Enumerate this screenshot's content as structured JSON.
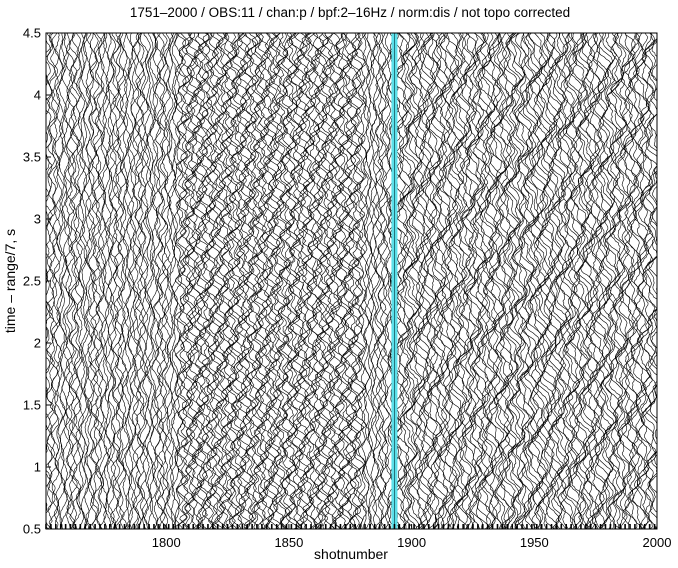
{
  "chart_data": {
    "type": "seismic-wiggle",
    "title": "1751–2000 / OBS:11 / chan:p / bpf:2–16Hz / norm:dis / not topo corrected",
    "xlabel": "shotnumber",
    "ylabel": "time – range/7, s",
    "xlim": [
      1751,
      2000
    ],
    "ylim": [
      0.5,
      4.5
    ],
    "x_ticks": [
      {
        "value": 1800,
        "label": "1800"
      },
      {
        "value": 1850,
        "label": "1850"
      },
      {
        "value": 1900,
        "label": "1900"
      },
      {
        "value": 1950,
        "label": "1950"
      },
      {
        "value": 2000,
        "label": "2000"
      }
    ],
    "y_ticks": [
      {
        "value": 0.5,
        "label": "0.5"
      },
      {
        "value": 1,
        "label": "1"
      },
      {
        "value": 1.5,
        "label": "1.5"
      },
      {
        "value": 2,
        "label": "2"
      },
      {
        "value": 2.5,
        "label": "2.5"
      },
      {
        "value": 3,
        "label": "3"
      },
      {
        "value": 3.5,
        "label": "3.5"
      },
      {
        "value": 4,
        "label": "4"
      },
      {
        "value": 4.5,
        "label": "4.5"
      }
    ],
    "y_reversed": true,
    "highlight_shot": 1893,
    "highlight_color": "#5ce0ea",
    "trace_color": "#000000",
    "shots": {
      "first": 1751,
      "last": 2000
    }
  }
}
